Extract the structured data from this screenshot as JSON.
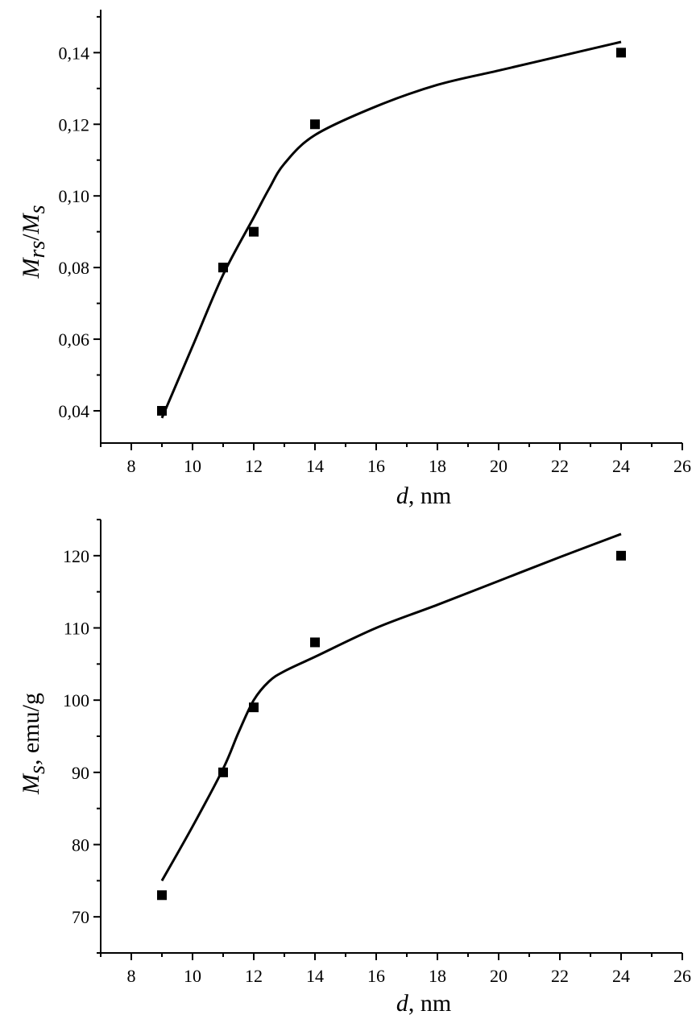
{
  "chart_data": [
    {
      "type": "scatter",
      "xlabel_italic": "d",
      "xlabel_rest": ", nm",
      "ylabel_parts": [
        {
          "text": "M",
          "italic": true,
          "sub": false
        },
        {
          "text": "rs",
          "italic": true,
          "sub": true
        },
        {
          "text": "/",
          "italic": false,
          "sub": false
        },
        {
          "text": "M",
          "italic": true,
          "sub": false
        },
        {
          "text": "s",
          "italic": true,
          "sub": true
        }
      ],
      "xlim": [
        7,
        26
      ],
      "ylim": [
        0.031,
        0.152
      ],
      "xticks": [
        8,
        10,
        12,
        14,
        16,
        18,
        20,
        22,
        24,
        26
      ],
      "xtick_labels": [
        "8",
        "10",
        "12",
        "14",
        "16",
        "18",
        "20",
        "22",
        "24",
        "26"
      ],
      "yticks": [
        0.04,
        0.06,
        0.08,
        0.1,
        0.12,
        0.14
      ],
      "ytick_labels": [
        "0,04",
        "0,06",
        "0,08",
        "0,10",
        "0,12",
        "0,14"
      ],
      "series": [
        {
          "kind": "markers",
          "x": [
            9,
            11,
            12,
            14,
            24
          ],
          "y": [
            0.04,
            0.08,
            0.09,
            0.12,
            0.14
          ]
        },
        {
          "kind": "line",
          "x": [
            9,
            10,
            11,
            12,
            12.5,
            13,
            14,
            16,
            18,
            20,
            22,
            24
          ],
          "y": [
            0.038,
            0.058,
            0.078,
            0.094,
            0.102,
            0.109,
            0.117,
            0.125,
            0.131,
            0.135,
            0.139,
            0.143
          ]
        }
      ]
    },
    {
      "type": "scatter",
      "xlabel_italic": "d",
      "xlabel_rest": ", nm",
      "ylabel_parts": [
        {
          "text": "M",
          "italic": true,
          "sub": false
        },
        {
          "text": "s",
          "italic": true,
          "sub": true
        },
        {
          "text": ", emu/g",
          "italic": false,
          "sub": false
        }
      ],
      "xlim": [
        7,
        26
      ],
      "ylim": [
        65,
        125
      ],
      "xticks": [
        8,
        10,
        12,
        14,
        16,
        18,
        20,
        22,
        24,
        26
      ],
      "xtick_labels": [
        "8",
        "10",
        "12",
        "14",
        "16",
        "18",
        "20",
        "22",
        "24",
        "26"
      ],
      "yticks": [
        70,
        80,
        90,
        100,
        110,
        120
      ],
      "ytick_labels": [
        "70",
        "80",
        "90",
        "100",
        "110",
        "120"
      ],
      "series": [
        {
          "kind": "markers",
          "x": [
            9,
            11,
            12,
            14,
            24
          ],
          "y": [
            73,
            90,
            99,
            108,
            120
          ]
        },
        {
          "kind": "line",
          "x": [
            9,
            10,
            11,
            11.5,
            12,
            12.5,
            13,
            14,
            16,
            18,
            20,
            22,
            24
          ],
          "y": [
            75,
            82.5,
            90.5,
            95.5,
            100,
            102.6,
            104,
            106,
            110,
            113.2,
            116.5,
            119.8,
            123
          ]
        }
      ]
    }
  ]
}
